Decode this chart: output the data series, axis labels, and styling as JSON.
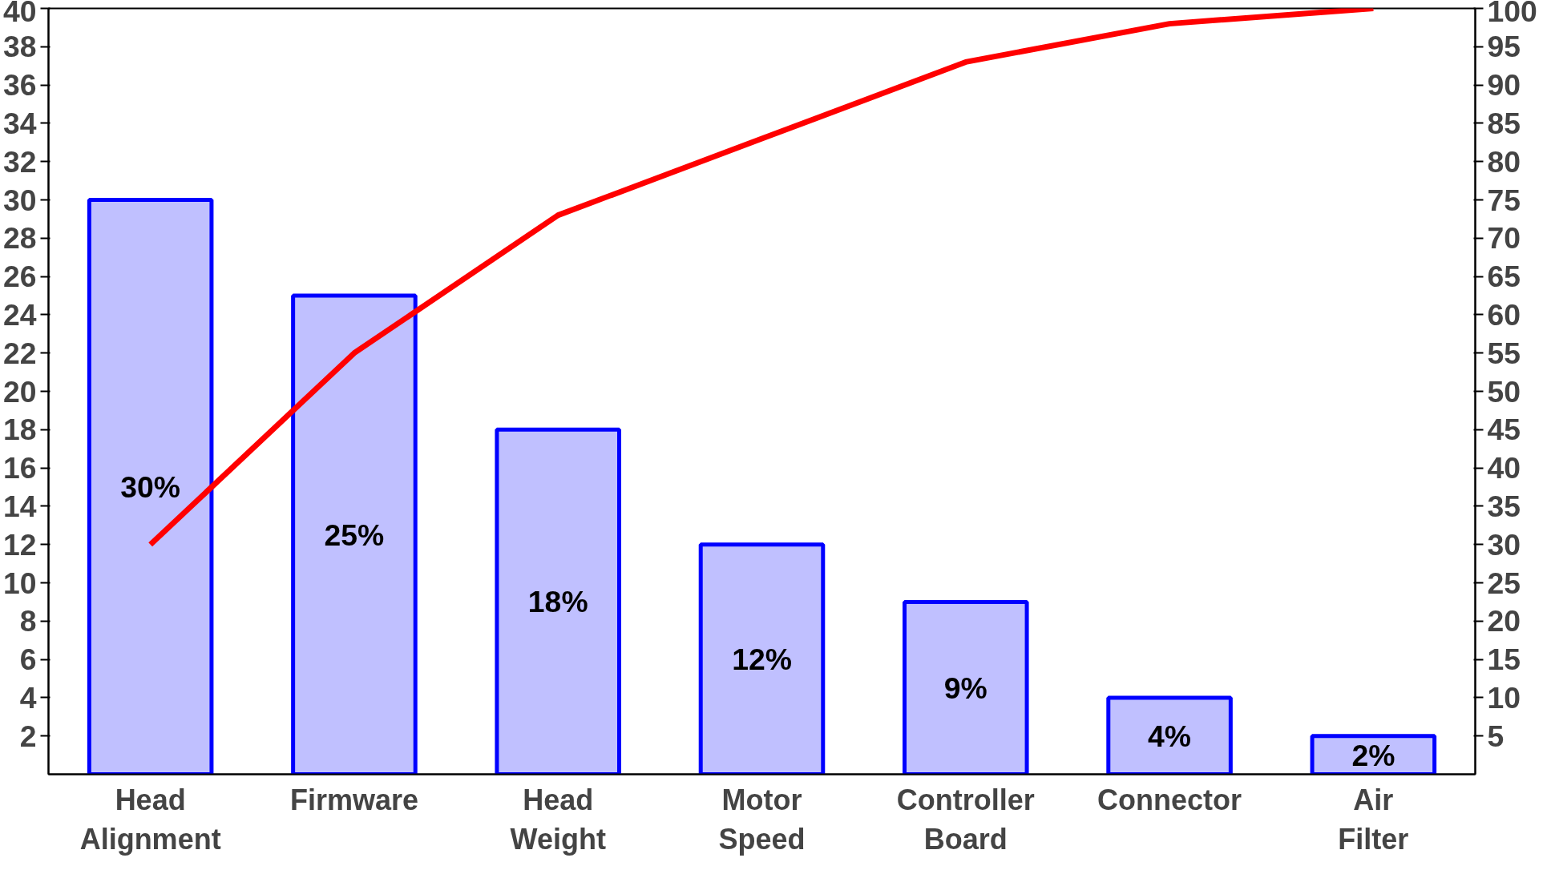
{
  "chart_data": {
    "type": "bar",
    "categories": [
      "Head Alignment",
      "Firmware",
      "Head Weight",
      "Motor Speed",
      "Controller Board",
      "Connector",
      "Air Filter"
    ],
    "series": [
      {
        "color": "#c0c0ff",
        "values": [
          30,
          25,
          18,
          12,
          9,
          4,
          2
        ],
        "value_labels": [
          "30%",
          "25%",
          "18%",
          "12%",
          "9%",
          "4%",
          "2%"
        ]
      },
      {
        "type": "line",
        "color": "#ff0000",
        "axis": "y2",
        "values": [
          30,
          55,
          73,
          83,
          93,
          98,
          100
        ]
      }
    ],
    "ylim": [
      0,
      40
    ],
    "yticks": [
      2,
      4,
      6,
      8,
      10,
      12,
      14,
      16,
      18,
      20,
      22,
      24,
      26,
      28,
      30,
      32,
      34,
      36,
      38,
      40
    ],
    "y2lim": [
      0,
      100
    ],
    "y2ticks": [
      5,
      10,
      15,
      20,
      25,
      30,
      35,
      40,
      45,
      50,
      55,
      60,
      65,
      70,
      75,
      80,
      85,
      90,
      95,
      100
    ],
    "grid": false,
    "marker": "none",
    "line_style": "solid"
  }
}
